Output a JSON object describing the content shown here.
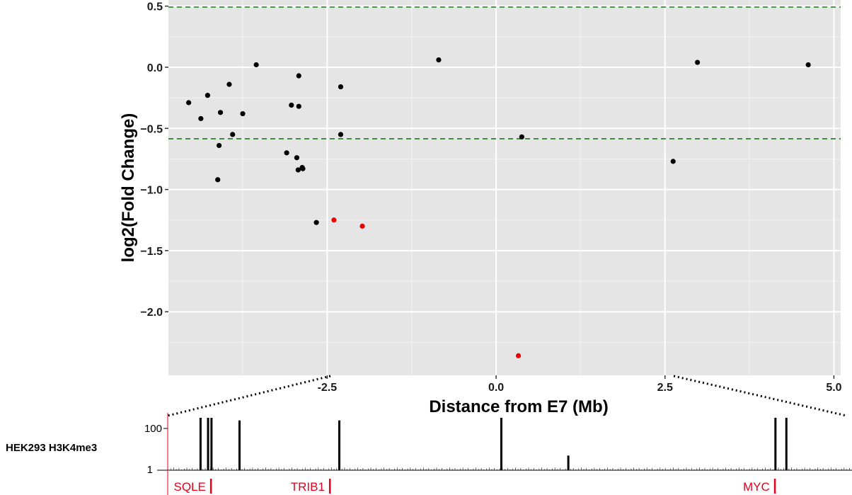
{
  "chart_data": [
    {
      "type": "scatter",
      "xlabel": "Distance from E7 (Mb)",
      "ylabel": "log2(Fold Change)",
      "xlim": [
        -4.85,
        5.1
      ],
      "ylim": [
        -2.52,
        0.55
      ],
      "x_ticks": [
        -2.5,
        0.0,
        2.5,
        5.0
      ],
      "x_tick_labels": [
        "-2.5",
        "0.0",
        "2.5",
        "5.0"
      ],
      "y_ticks": [
        0.5,
        0.0,
        -0.5,
        -1.0,
        -1.5,
        -2.0
      ],
      "y_tick_labels": [
        "0.5",
        "0.0",
        "−0.5",
        "−1.0",
        "−1.5",
        "−2.0"
      ],
      "grid": true,
      "background": "#e5e5e5",
      "reference_lines": [
        0.55,
        -0.585
      ],
      "reference_line_color": "#1a7a1a",
      "series": [
        {
          "color": "#000000",
          "points": [
            [
              -4.55,
              -0.29
            ],
            [
              -4.37,
              -0.42
            ],
            [
              -4.27,
              -0.23
            ],
            [
              -4.08,
              -0.37
            ],
            [
              -4.1,
              -0.64
            ],
            [
              -4.12,
              -0.92
            ],
            [
              -3.95,
              -0.14
            ],
            [
              -3.9,
              -0.55
            ],
            [
              -3.75,
              -0.38
            ],
            [
              -3.55,
              0.02
            ],
            [
              -3.1,
              -0.7
            ],
            [
              -3.03,
              -0.31
            ],
            [
              -2.95,
              -0.74
            ],
            [
              -2.93,
              -0.84
            ],
            [
              -2.92,
              -0.07
            ],
            [
              -2.92,
              -0.32
            ],
            [
              -2.87,
              -0.82
            ],
            [
              -2.86,
              -0.83
            ],
            [
              -2.66,
              -1.27
            ],
            [
              -2.3,
              -0.16
            ],
            [
              -2.3,
              -0.55
            ],
            [
              -0.85,
              0.06
            ],
            [
              0.38,
              -0.57
            ],
            [
              2.62,
              -0.77
            ],
            [
              2.98,
              0.04
            ],
            [
              4.62,
              0.02
            ]
          ]
        },
        {
          "color": "#ee0000",
          "points": [
            [
              -2.4,
              -1.25
            ],
            [
              -1.98,
              -1.3
            ],
            [
              0.33,
              -2.36
            ]
          ]
        }
      ]
    },
    {
      "type": "area",
      "title": "HEK293 H3K4me3",
      "y_tick_labels": [
        "100",
        "1"
      ],
      "signal_color": "#000000",
      "peaks": [
        {
          "pos": 0.047,
          "height": 1.0
        },
        {
          "pos": 0.058,
          "height": 1.0
        },
        {
          "pos": 0.063,
          "height": 1.0
        },
        {
          "pos": 0.104,
          "height": 0.95
        },
        {
          "pos": 0.25,
          "height": 0.95
        },
        {
          "pos": 0.487,
          "height": 1.0
        },
        {
          "pos": 0.585,
          "height": 0.28
        },
        {
          "pos": 0.888,
          "height": 1.0
        },
        {
          "pos": 0.904,
          "height": 1.0
        }
      ],
      "genes": [
        {
          "name": "SQLE",
          "pos": 0.063
        },
        {
          "name": "TRIB1",
          "pos": 0.237
        },
        {
          "name": "MYC",
          "pos": 0.888
        }
      ],
      "gene_color": "#e8001c"
    }
  ]
}
